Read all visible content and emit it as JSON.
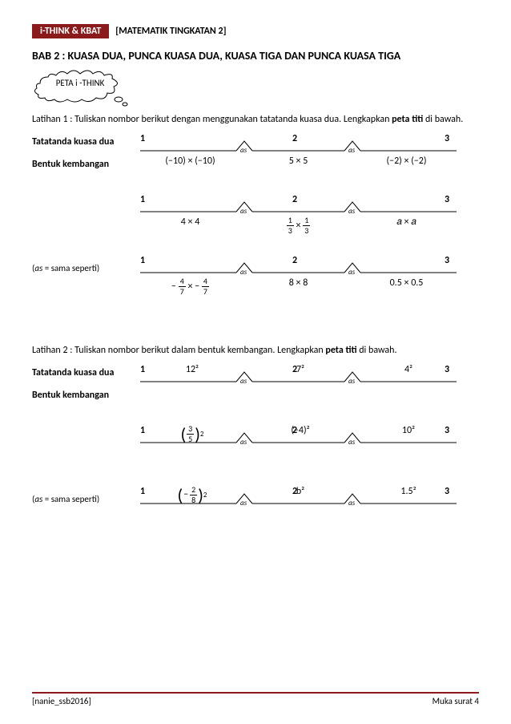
{
  "header": {
    "left": "i-THINK & KBAT",
    "right_prefix": "[",
    "right_text": "MATEMATIK TINGKATAN 2",
    "right_suffix": "]"
  },
  "chapter": "BAB 2 : KUASA DUA, PUNCA KUASA DUA, KUASA TIGA DAN PUNCA KUASA TIGA",
  "cloud_label": "PETA i -THINK",
  "ex1": {
    "intro_a": "Latihan 1 : Tuliskan nombor berikut dengan menggunakan tatatanda kuasa dua. Lengkapkan",
    "intro_b": "peta titi",
    "intro_c": " di bawah.",
    "label_top": "Tatatanda kuasa dua",
    "label_mid": "Bentuk kembangan",
    "rows": [
      {
        "n": [
          "1",
          "2",
          "3"
        ],
        "vals": [
          "(−10) × (−10)",
          "5 × 5",
          "(−2) × (−2)"
        ]
      },
      {
        "n": [
          "1",
          "2",
          "3"
        ],
        "vals": [
          "4 × 4",
          "FRAC13",
          "𝑎 × 𝑎"
        ]
      },
      {
        "n": [
          "1",
          "2",
          "3"
        ],
        "vals": [
          "FRACM47",
          "8 × 8",
          "0.5 × 0.5"
        ]
      }
    ],
    "as_note_pre": "(",
    "as_note_it": "as",
    "as_note_post": " = sama seperti)"
  },
  "ex2": {
    "intro_a": "Latihan 2 : Tuliskan nombor berikut dalam bentuk kembangan. Lengkapkan ",
    "intro_b": "peta titi",
    "intro_c": " di bawah.",
    "label_top": "Tatatanda kuasa dua",
    "label_mid": "Bentuk kembangan",
    "rows": [
      {
        "n": [
          "1",
          "2",
          "3"
        ],
        "upper": [
          "12²",
          "7²",
          "4²"
        ]
      },
      {
        "n": [
          "1",
          "2",
          "3"
        ],
        "upper": [
          "PF35",
          "(−4)²",
          "10²"
        ]
      },
      {
        "n": [
          "1",
          "2",
          "3"
        ],
        "upper": [
          "PFM28",
          "b²",
          "1.5²"
        ]
      }
    ],
    "as_note_pre": "(",
    "as_note_it": "as",
    "as_note_post": " = sama seperti)"
  },
  "bridge": {
    "as_label": "as"
  },
  "footer": {
    "left": "[nanie_ssb2016]",
    "right": "Muka surat 4"
  }
}
